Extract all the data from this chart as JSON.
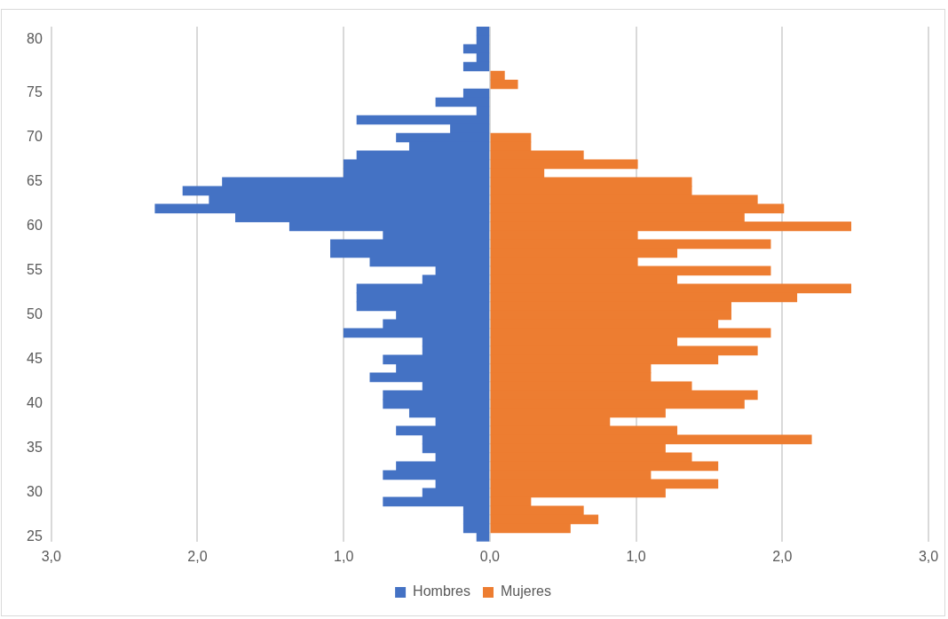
{
  "chart_data": {
    "type": "bar",
    "orientation": "horizontal",
    "stacked": true,
    "categories": [
      null,
      "80",
      null,
      null,
      null,
      null,
      null,
      "75",
      null,
      null,
      null,
      null,
      "70",
      null,
      null,
      null,
      null,
      "65",
      null,
      null,
      null,
      null,
      "60",
      null,
      null,
      null,
      null,
      "55",
      null,
      null,
      null,
      null,
      "50",
      null,
      null,
      null,
      null,
      "45",
      null,
      null,
      null,
      null,
      "40",
      null,
      null,
      null,
      null,
      "35",
      null,
      null,
      null,
      null,
      "30",
      null,
      null,
      null,
      null,
      "25"
    ],
    "series": [
      {
        "name": "Hombres",
        "color": "#4472c4",
        "values": [
          -0.09,
          -0.09,
          -0.18,
          -0.09,
          -0.18,
          null,
          null,
          -0.18,
          -0.37,
          -0.09,
          -0.91,
          -0.27,
          -0.64,
          -0.55,
          -0.91,
          -1.0,
          -1.0,
          -1.83,
          -2.1,
          -1.92,
          -2.29,
          -1.74,
          -1.37,
          -0.73,
          -1.09,
          -1.09,
          -0.82,
          -0.37,
          -0.46,
          -0.91,
          -0.91,
          -0.91,
          -0.64,
          -0.73,
          -1.0,
          -0.46,
          -0.46,
          -0.73,
          -0.64,
          -0.82,
          -0.46,
          -0.73,
          -0.73,
          -0.55,
          -0.37,
          -0.64,
          -0.46,
          -0.46,
          -0.37,
          -0.64,
          -0.73,
          -0.37,
          -0.46,
          -0.73,
          -0.18,
          -0.18,
          -0.18,
          -0.09
        ]
      },
      {
        "name": "Mujeres",
        "color": "#ed7d31",
        "values": [
          null,
          null,
          null,
          null,
          null,
          0.1,
          0.19,
          null,
          null,
          null,
          null,
          null,
          0.28,
          0.28,
          0.64,
          1.01,
          0.37,
          1.38,
          1.38,
          1.83,
          2.01,
          1.74,
          2.47,
          1.01,
          1.92,
          1.28,
          1.01,
          1.92,
          1.28,
          2.47,
          2.1,
          1.65,
          1.65,
          1.56,
          1.92,
          1.28,
          1.83,
          1.56,
          1.1,
          1.1,
          1.38,
          1.83,
          1.74,
          1.2,
          0.82,
          1.28,
          2.2,
          1.2,
          1.38,
          1.56,
          1.1,
          1.56,
          1.2,
          0.28,
          0.64,
          0.74,
          0.55,
          null
        ]
      }
    ],
    "xlim": [
      -3,
      3
    ],
    "xticks": [
      {
        "value": -3,
        "label": "3,0"
      },
      {
        "value": -2,
        "label": "2,0"
      },
      {
        "value": -1,
        "label": "1,0"
      },
      {
        "value": 0,
        "label": "0,0"
      },
      {
        "value": 1,
        "label": "1,0"
      },
      {
        "value": 2,
        "label": "2,0"
      },
      {
        "value": 3,
        "label": "3,0"
      }
    ],
    "grid": "x",
    "legend": "bottom"
  }
}
